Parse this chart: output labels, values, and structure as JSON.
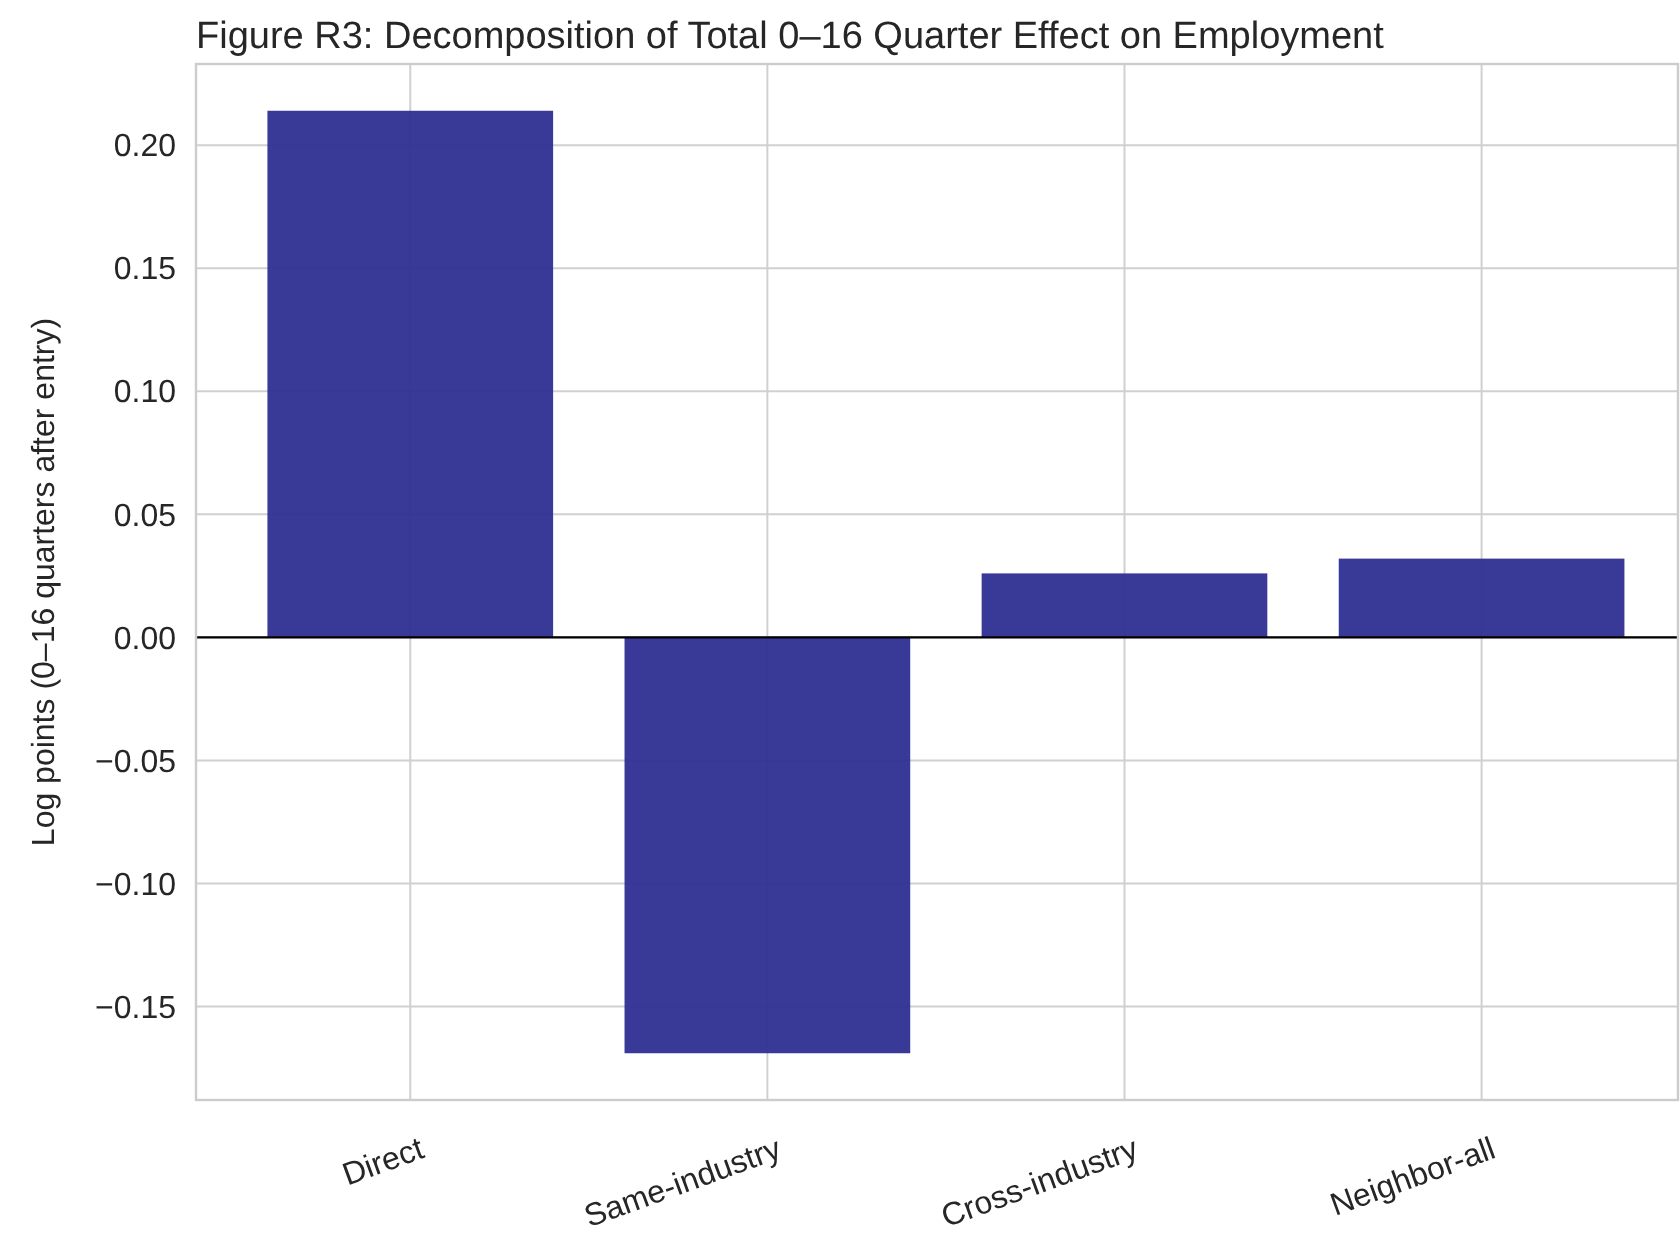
{
  "chart_data": {
    "type": "bar",
    "title": "Figure R3: Decomposition of Total 0–16 Quarter Effect on Employment",
    "ylabel": "Log points (0–16 quarters after entry)",
    "categories": [
      "Direct",
      "Same-industry",
      "Cross-industry",
      "Neighbor-all"
    ],
    "values": [
      0.214,
      -0.169,
      0.026,
      0.032
    ],
    "color": "#2e2e92",
    "ylim": [
      -0.188,
      0.233
    ],
    "yticks": [
      {
        "value": -0.15,
        "label": "−0.15"
      },
      {
        "value": -0.1,
        "label": "−0.10"
      },
      {
        "value": -0.05,
        "label": "−0.05"
      },
      {
        "value": 0,
        "label": "0.00"
      },
      {
        "value": 0.05,
        "label": "0.05"
      },
      {
        "value": 0.1,
        "label": "0.10"
      },
      {
        "value": 0.15,
        "label": "0.15"
      },
      {
        "value": 0.2,
        "label": "0.20"
      }
    ],
    "grid": true,
    "ref_lines": [
      {
        "axis": "y",
        "value": 0,
        "color": "#000000"
      }
    ]
  }
}
